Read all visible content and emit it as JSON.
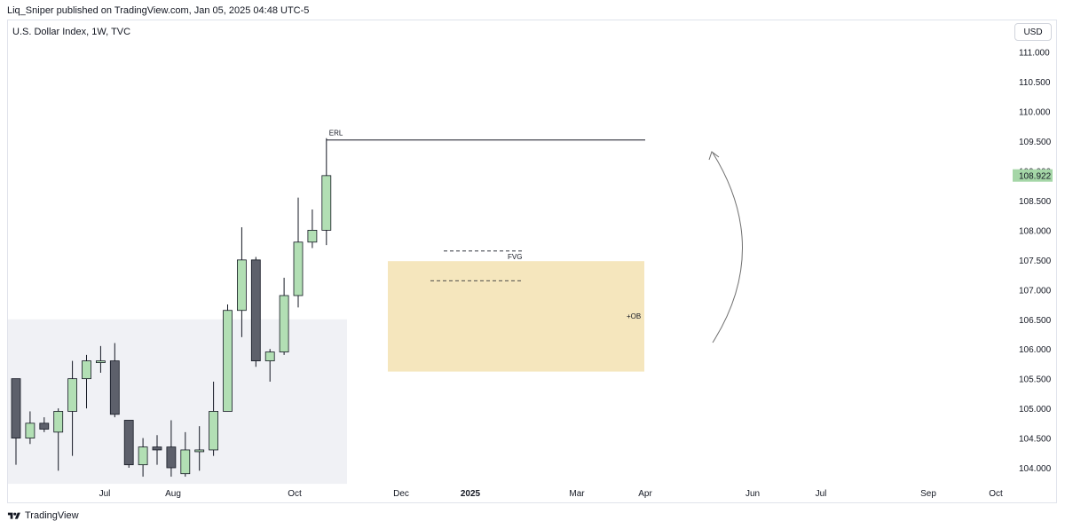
{
  "header": {
    "publisher_line": "Liq_Sniper published on TradingView.com, Jan 05, 2025 04:48 UTC-5",
    "symbol": "U.S. Dollar Index, 1W, TVC",
    "currency_button": "USD"
  },
  "footer": {
    "brand": "TradingView"
  },
  "colors": {
    "up": "#b2dfb4",
    "down": "#5d606b",
    "ob_zone": "#f5e6bd",
    "range_box": "#f0f1f5",
    "price_tag": "#a5d6a7"
  },
  "chart_data": {
    "type": "candlestick",
    "y_axis_ticks": [
      111.0,
      110.5,
      110.0,
      109.5,
      109.0,
      108.5,
      108.0,
      107.5,
      107.0,
      106.5,
      106.0,
      105.5,
      105.0,
      104.5,
      104.0
    ],
    "y_tick_labels": [
      "111.000",
      "110.500",
      "110.000",
      "109.500",
      "109.000",
      "108.500",
      "108.000",
      "107.500",
      "107.000",
      "106.500",
      "106.000",
      "105.500",
      "105.000",
      "104.500",
      "104.000"
    ],
    "ylim": [
      103.85,
      111.7
    ],
    "x_axis_labels": [
      "Jul",
      "Aug",
      "Oct",
      "Dec",
      "2025",
      "Mar",
      "Apr",
      "Jun",
      "Jul",
      "Sep",
      "Oct"
    ],
    "last_price_label": "108.922",
    "last_price": 108.922,
    "candles": [
      {
        "o": 105.5,
        "h": 105.45,
        "l": 104.05,
        "c": 104.5,
        "dir": "down"
      },
      {
        "o": 104.5,
        "h": 104.95,
        "l": 104.4,
        "c": 104.75,
        "dir": "up"
      },
      {
        "o": 104.75,
        "h": 104.85,
        "l": 104.6,
        "c": 104.65,
        "dir": "down"
      },
      {
        "o": 104.6,
        "h": 105.0,
        "l": 103.95,
        "c": 104.95,
        "dir": "up"
      },
      {
        "o": 104.95,
        "h": 105.8,
        "l": 104.2,
        "c": 105.5,
        "dir": "up"
      },
      {
        "o": 105.5,
        "h": 105.9,
        "l": 105.0,
        "c": 105.8,
        "dir": "up"
      },
      {
        "o": 105.8,
        "h": 106.05,
        "l": 105.6,
        "c": 105.8,
        "dir": "up"
      },
      {
        "o": 105.8,
        "h": 106.1,
        "l": 104.85,
        "c": 104.9,
        "dir": "down"
      },
      {
        "o": 104.8,
        "h": 104.8,
        "l": 104.0,
        "c": 104.05,
        "dir": "down"
      },
      {
        "o": 104.05,
        "h": 104.5,
        "l": 103.85,
        "c": 104.35,
        "dir": "up"
      },
      {
        "o": 104.35,
        "h": 104.55,
        "l": 104.05,
        "c": 104.3,
        "dir": "down"
      },
      {
        "o": 104.35,
        "h": 104.8,
        "l": 103.85,
        "c": 104.0,
        "dir": "down"
      },
      {
        "o": 103.9,
        "h": 104.6,
        "l": 103.85,
        "c": 104.3,
        "dir": "up"
      },
      {
        "o": 104.3,
        "h": 104.7,
        "l": 103.95,
        "c": 104.3,
        "dir": "up"
      },
      {
        "o": 104.3,
        "h": 105.45,
        "l": 104.2,
        "c": 104.95,
        "dir": "up"
      },
      {
        "o": 104.95,
        "h": 106.75,
        "l": 104.95,
        "c": 106.65,
        "dir": "up"
      },
      {
        "o": 106.65,
        "h": 108.05,
        "l": 106.2,
        "c": 107.5,
        "dir": "up"
      },
      {
        "o": 107.5,
        "h": 107.55,
        "l": 105.7,
        "c": 105.8,
        "dir": "down"
      },
      {
        "o": 105.8,
        "h": 106.0,
        "l": 105.45,
        "c": 105.95,
        "dir": "up"
      },
      {
        "o": 105.95,
        "h": 107.2,
        "l": 105.9,
        "c": 106.9,
        "dir": "up"
      },
      {
        "o": 106.9,
        "h": 108.55,
        "l": 106.7,
        "c": 107.8,
        "dir": "up"
      },
      {
        "o": 107.8,
        "h": 108.35,
        "l": 107.7,
        "c": 108.0,
        "dir": "up"
      },
      {
        "o": 108.0,
        "h": 109.55,
        "l": 107.75,
        "c": 108.92,
        "dir": "up"
      }
    ],
    "annotations": [
      {
        "label": "ERL",
        "kind": "horizontal-line",
        "price": 109.52
      },
      {
        "label": "FVG",
        "kind": "dashed-line",
        "price": 107.65
      },
      {
        "label": "",
        "kind": "dashed-line",
        "price": 107.15
      },
      {
        "label": "+OB",
        "kind": "zone",
        "price_top": 107.48,
        "price_bottom": 105.62
      },
      {
        "label": "",
        "kind": "range-box",
        "price_top": 106.5,
        "price_bottom": 103.85
      },
      {
        "label": "",
        "kind": "arc-arrow",
        "direction": "up"
      }
    ]
  }
}
